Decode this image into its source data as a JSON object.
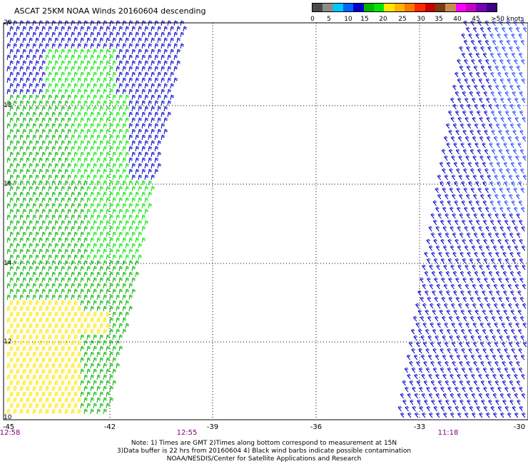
{
  "title": "ASCAT 25KM NOAA Winds 20160604 descending",
  "legend": {
    "colors": [
      "#4a4a4a",
      "#8c8c8c",
      "#00c8ff",
      "#0064ff",
      "#0000c8",
      "#00b400",
      "#00e600",
      "#ffe600",
      "#ffb400",
      "#ff7800",
      "#ff2800",
      "#c80000",
      "#7a3c14",
      "#c88c50",
      "#ff00ff",
      "#c800c8",
      "#7800b4",
      "#3c0082"
    ],
    "labels": [
      "0",
      "5",
      "10",
      "15",
      "20",
      "25",
      "30",
      "35",
      "40",
      "45",
      ">50 knots"
    ]
  },
  "map": {
    "lat_labels": [
      "20",
      "18",
      "16",
      "14",
      "12",
      "10"
    ],
    "lon_labels": [
      "-45",
      "-42",
      "-39",
      "-36",
      "-33",
      "-30"
    ],
    "time_labels": [
      "12:58",
      "12:55",
      "11:18"
    ],
    "barb_colors": {
      "blue": "#0000c8",
      "cyan_blue": "#1e46ff",
      "green": "#00b400",
      "lime": "#00e600",
      "yellow": "#ffe600"
    }
  },
  "notes": {
    "line1": "Note: 1) Times are GMT 2)Times along bottom correspond to measurement at 15N",
    "line2": "3)Data buffer is 22 hrs from 20160604 4) Black wind barbs indicate possible contamination",
    "line3": "NOAA/NESDIS/Center for Satellite Applications and Research"
  }
}
